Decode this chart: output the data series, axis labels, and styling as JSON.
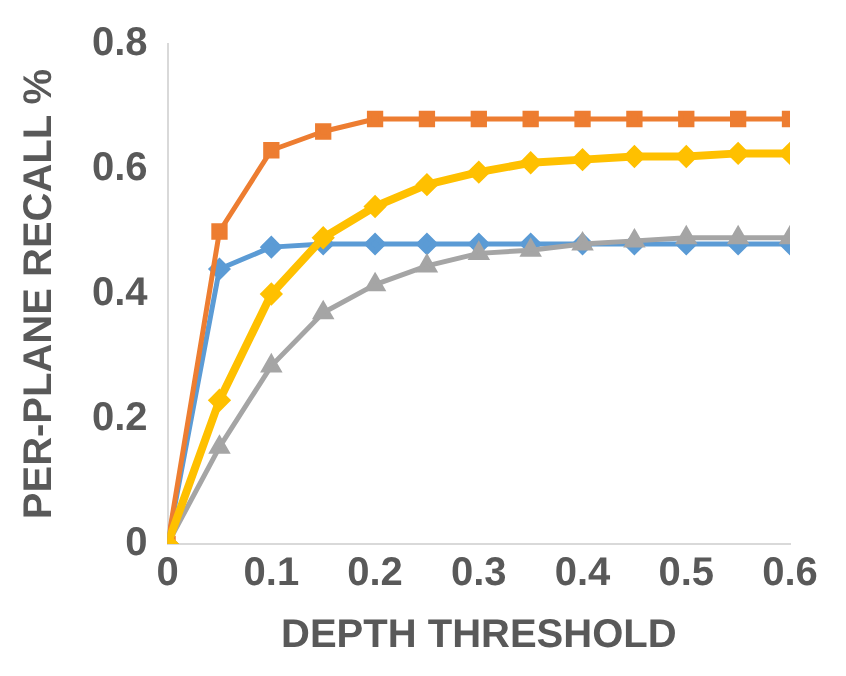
{
  "chart_data": {
    "type": "line",
    "xlabel": "DEPTH THRESHOLD",
    "ylabel": "PER-PLANE RECALL %",
    "x": [
      0,
      0.05,
      0.1,
      0.15,
      0.2,
      0.25,
      0.3,
      0.35,
      0.4,
      0.45,
      0.5,
      0.55,
      0.6
    ],
    "xlim": [
      0,
      0.6
    ],
    "xticks": [
      0,
      0.1,
      0.2,
      0.3,
      0.4,
      0.5,
      0.6
    ],
    "ylim": [
      0,
      0.8
    ],
    "yticks": [
      0,
      0.2,
      0.4,
      0.6,
      0.8
    ],
    "grid": false,
    "legend": false,
    "series": [
      {
        "color": "#5b9bd5",
        "marker": "diamond",
        "values": [
          0,
          0.44,
          0.475,
          0.48,
          0.48,
          0.48,
          0.48,
          0.48,
          0.48,
          0.48,
          0.48,
          0.48,
          0.48
        ]
      },
      {
        "color": "#ed7d31",
        "marker": "square",
        "values": [
          0,
          0.5,
          0.63,
          0.66,
          0.68,
          0.68,
          0.68,
          0.68,
          0.68,
          0.68,
          0.68,
          0.68,
          0.68
        ]
      },
      {
        "color": "#a5a5a5",
        "marker": "triangle",
        "values": [
          0,
          0.155,
          0.285,
          0.37,
          0.415,
          0.445,
          0.465,
          0.47,
          0.48,
          0.485,
          0.49,
          0.49,
          0.49
        ]
      },
      {
        "color": "#ffc000",
        "marker": "diamond",
        "values": [
          0,
          0.23,
          0.4,
          0.49,
          0.54,
          0.575,
          0.595,
          0.61,
          0.615,
          0.62,
          0.62,
          0.625,
          0.625
        ]
      }
    ]
  }
}
